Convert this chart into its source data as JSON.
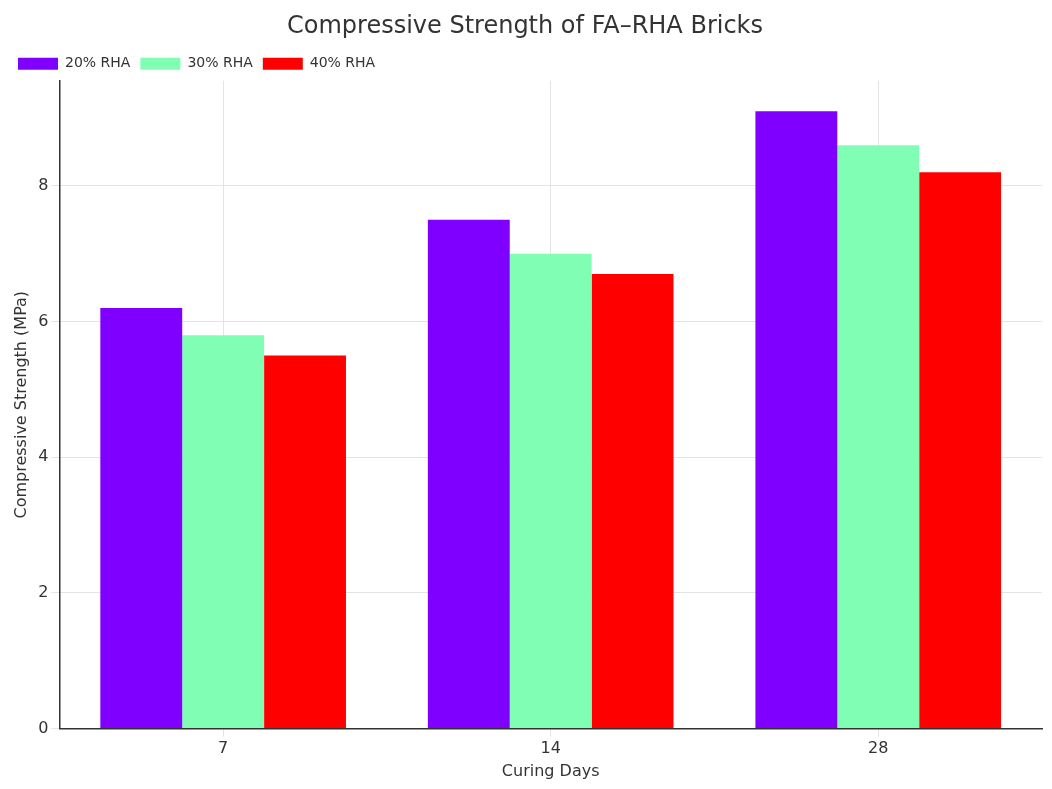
{
  "chart_data": {
    "type": "bar",
    "title": "Compressive Strength of FA–RHA Bricks",
    "xlabel": "Curing Days",
    "ylabel": "Compressive Strength (MPa)",
    "categories": [
      "7",
      "14",
      "28"
    ],
    "series": [
      {
        "name": "20% RHA",
        "color": "#7f00ff",
        "values": [
          6.2,
          7.5,
          9.1
        ]
      },
      {
        "name": "30% RHA",
        "color": "#80ffb4",
        "values": [
          5.8,
          7.0,
          8.6
        ]
      },
      {
        "name": "40% RHA",
        "color": "#ff0000",
        "values": [
          5.5,
          6.7,
          8.2
        ]
      }
    ],
    "ylim": [
      0,
      9.55
    ],
    "yticks": [
      0,
      2,
      4,
      6,
      8
    ],
    "grid": true,
    "legend": "top left"
  }
}
